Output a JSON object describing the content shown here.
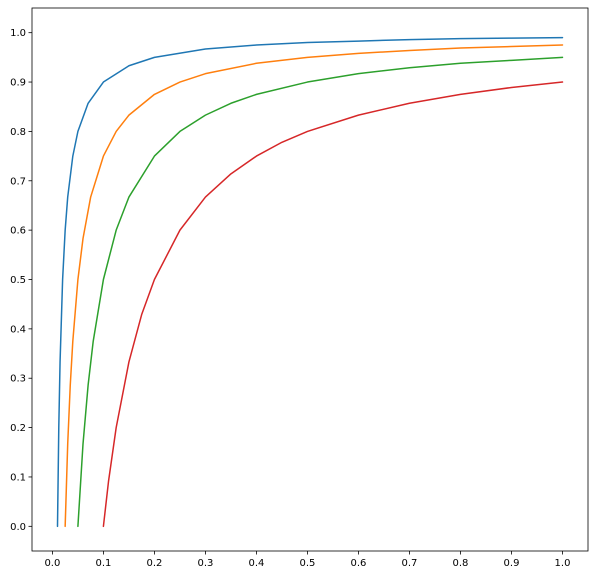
{
  "chart_data": {
    "type": "line",
    "title": "",
    "xlabel": "",
    "ylabel": "",
    "xlim": [
      -0.04,
      1.05
    ],
    "ylim": [
      -0.05,
      1.05
    ],
    "grid": false,
    "legend": "none",
    "x_ticks": [
      "0.0",
      "0.1",
      "0.2",
      "0.3",
      "0.4",
      "0.5",
      "0.6",
      "0.7",
      "0.8",
      "0.9",
      "1.0"
    ],
    "y_ticks": [
      "0.0",
      "0.1",
      "0.2",
      "0.3",
      "0.4",
      "0.5",
      "0.6",
      "0.7",
      "0.8",
      "0.9",
      "1.0"
    ],
    "series": [
      {
        "color": "#1f77b4",
        "x": [
          0.01,
          0.0125,
          0.015,
          0.02,
          0.025,
          0.03,
          0.04,
          0.05,
          0.07,
          0.1,
          0.15,
          0.2,
          0.3,
          0.4,
          0.5,
          0.6,
          0.7,
          0.8,
          0.9,
          1.0
        ],
        "y": [
          0.0,
          0.2,
          0.333,
          0.5,
          0.6,
          0.667,
          0.75,
          0.8,
          0.857,
          0.9,
          0.933,
          0.95,
          0.967,
          0.975,
          0.98,
          0.983,
          0.986,
          0.988,
          0.989,
          0.99
        ]
      },
      {
        "color": "#ff7f0e",
        "x": [
          0.025,
          0.03,
          0.035,
          0.04,
          0.05,
          0.06,
          0.075,
          0.1,
          0.125,
          0.15,
          0.2,
          0.25,
          0.3,
          0.4,
          0.5,
          0.6,
          0.7,
          0.8,
          0.9,
          1.0
        ],
        "y": [
          0.0,
          0.167,
          0.286,
          0.375,
          0.5,
          0.583,
          0.667,
          0.75,
          0.8,
          0.833,
          0.875,
          0.9,
          0.917,
          0.938,
          0.95,
          0.958,
          0.964,
          0.969,
          0.972,
          0.975
        ]
      },
      {
        "color": "#2ca02c",
        "x": [
          0.05,
          0.06,
          0.07,
          0.08,
          0.1,
          0.125,
          0.15,
          0.2,
          0.25,
          0.3,
          0.35,
          0.4,
          0.5,
          0.6,
          0.7,
          0.8,
          0.9,
          1.0
        ],
        "y": [
          0.0,
          0.167,
          0.286,
          0.375,
          0.5,
          0.6,
          0.667,
          0.75,
          0.8,
          0.833,
          0.857,
          0.875,
          0.9,
          0.917,
          0.929,
          0.938,
          0.944,
          0.95
        ]
      },
      {
        "color": "#d62728",
        "x": [
          0.1,
          0.11,
          0.125,
          0.15,
          0.175,
          0.2,
          0.25,
          0.3,
          0.35,
          0.4,
          0.45,
          0.5,
          0.6,
          0.7,
          0.8,
          0.9,
          1.0
        ],
        "y": [
          0.0,
          0.091,
          0.2,
          0.333,
          0.429,
          0.5,
          0.6,
          0.667,
          0.714,
          0.75,
          0.778,
          0.8,
          0.833,
          0.857,
          0.875,
          0.889,
          0.9
        ]
      }
    ]
  }
}
